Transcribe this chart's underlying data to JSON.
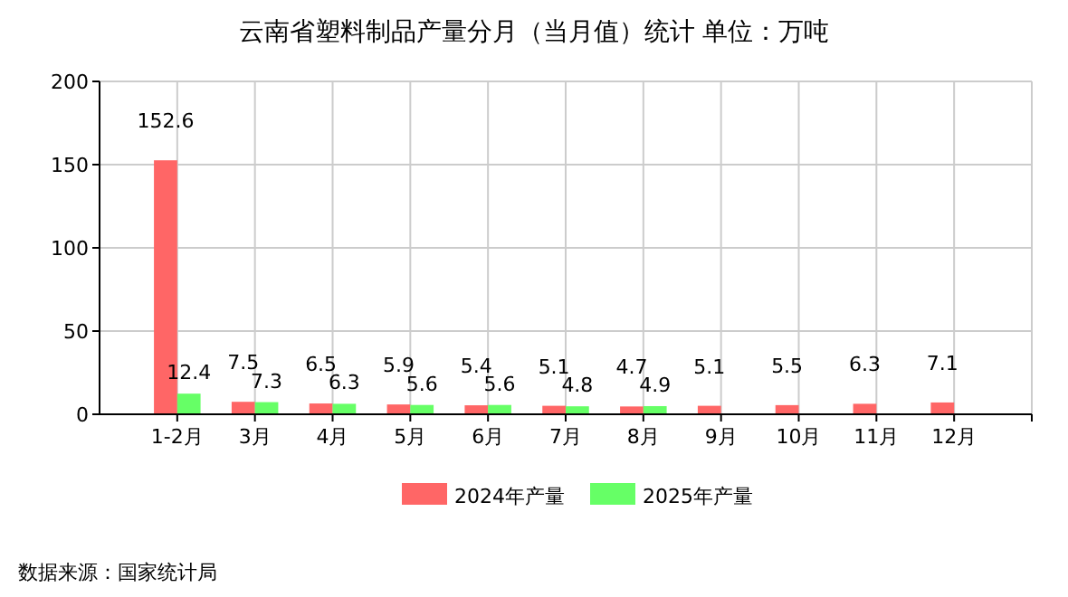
{
  "chart_data": {
    "type": "bar",
    "title": "云南省塑料制品产量分月（当月值）统计 单位：万吨",
    "categories": [
      "1-2月",
      "3月",
      "4月",
      "5月",
      "6月",
      "7月",
      "8月",
      "9月",
      "10月",
      "11月",
      "12月"
    ],
    "series": [
      {
        "name": "2024年产量",
        "color": "#ff6666",
        "values": [
          152.6,
          7.5,
          6.5,
          5.9,
          5.4,
          5.1,
          4.7,
          5.1,
          5.5,
          6.3,
          7.1
        ]
      },
      {
        "name": "2025年产量",
        "color": "#66ff66",
        "values": [
          12.4,
          7.3,
          6.3,
          5.6,
          5.6,
          4.8,
          4.9,
          null,
          null,
          null,
          null
        ]
      }
    ],
    "ylim": [
      0,
      200
    ],
    "yticks": [
      0,
      50,
      100,
      150,
      200
    ],
    "grid": true,
    "data_labels": true,
    "legend": "bottom",
    "annotations": [
      "数据来源：国家统计局"
    ]
  }
}
